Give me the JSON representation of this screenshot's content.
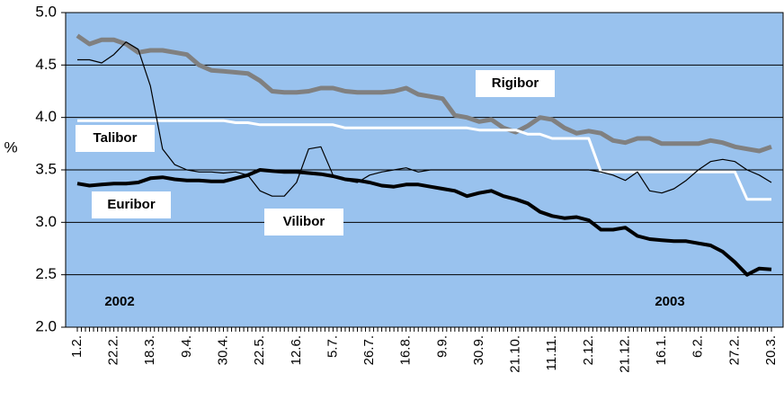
{
  "chart_data": {
    "type": "line",
    "y_label": "%",
    "categories": [
      "1.2.",
      null,
      null,
      "22.2.",
      null,
      null,
      "18.3.",
      null,
      null,
      "9.4.",
      null,
      null,
      "30.4.",
      null,
      null,
      "22.5.",
      null,
      null,
      "12.6.",
      null,
      null,
      "5.7.",
      null,
      null,
      "26.7.",
      null,
      null,
      "16.8.",
      null,
      null,
      "9.9.",
      null,
      null,
      "30.9.",
      null,
      null,
      "21.10.",
      null,
      null,
      "11.11.",
      null,
      null,
      "2.12.",
      null,
      null,
      "21.12.",
      null,
      null,
      "16.1.",
      null,
      null,
      "6.2.",
      null,
      null,
      "27.2.",
      null,
      null,
      "20.3."
    ],
    "series": [
      {
        "name": "Rigibor",
        "color": "#808080",
        "width": 5,
        "values": [
          4.78,
          4.7,
          4.74,
          4.74,
          4.7,
          4.62,
          4.64,
          4.64,
          4.62,
          4.6,
          4.5,
          4.45,
          4.44,
          4.43,
          4.42,
          4.35,
          4.25,
          4.24,
          4.24,
          4.25,
          4.28,
          4.28,
          4.25,
          4.24,
          4.24,
          4.24,
          4.25,
          4.28,
          4.22,
          4.2,
          4.18,
          4.02,
          4.0,
          3.96,
          3.98,
          3.9,
          3.86,
          3.92,
          4.0,
          3.98,
          3.9,
          3.85,
          3.87,
          3.85,
          3.78,
          3.76,
          3.8,
          3.8,
          3.75,
          3.75,
          3.75,
          3.75,
          3.78,
          3.76,
          3.72,
          3.7,
          3.68,
          3.72
        ]
      },
      {
        "name": "Talibor",
        "color": "#ffffff",
        "width": 3,
        "values": [
          3.97,
          3.97,
          3.97,
          3.97,
          3.97,
          3.97,
          3.97,
          3.97,
          3.97,
          3.97,
          3.97,
          3.97,
          3.97,
          3.95,
          3.95,
          3.93,
          3.93,
          3.93,
          3.93,
          3.93,
          3.93,
          3.93,
          3.9,
          3.9,
          3.9,
          3.9,
          3.9,
          3.9,
          3.9,
          3.9,
          3.9,
          3.9,
          3.9,
          3.88,
          3.88,
          3.88,
          3.88,
          3.84,
          3.84,
          3.8,
          3.8,
          3.8,
          3.8,
          3.48,
          3.48,
          3.48,
          3.48,
          3.48,
          3.48,
          3.48,
          3.48,
          3.48,
          3.48,
          3.48,
          3.48,
          3.22,
          3.22,
          3.22
        ]
      },
      {
        "name": "Euribor",
        "color": "#000000",
        "width": 4,
        "values": [
          3.37,
          3.35,
          3.36,
          3.37,
          3.37,
          3.38,
          3.42,
          3.43,
          3.41,
          3.4,
          3.4,
          3.39,
          3.39,
          3.42,
          3.45,
          3.5,
          3.49,
          3.48,
          3.48,
          3.47,
          3.46,
          3.44,
          3.41,
          3.4,
          3.38,
          3.35,
          3.34,
          3.36,
          3.36,
          3.34,
          3.32,
          3.3,
          3.25,
          3.28,
          3.3,
          3.25,
          3.22,
          3.18,
          3.1,
          3.06,
          3.04,
          3.05,
          3.02,
          2.93,
          2.93,
          2.95,
          2.87,
          2.84,
          2.83,
          2.82,
          2.82,
          2.8,
          2.78,
          2.72,
          2.62,
          2.5,
          2.56,
          2.55
        ]
      },
      {
        "name": "Vilibor",
        "color": "#000000",
        "width": 1.2,
        "values": [
          4.55,
          4.55,
          4.52,
          4.6,
          4.72,
          4.65,
          4.3,
          3.7,
          3.55,
          3.5,
          3.48,
          3.48,
          3.47,
          3.48,
          3.45,
          3.3,
          3.25,
          3.25,
          3.38,
          3.7,
          3.72,
          3.45,
          3.4,
          3.38,
          3.45,
          3.48,
          3.5,
          3.52,
          3.48,
          3.5,
          3.5,
          3.5,
          3.5,
          3.5,
          3.5,
          3.5,
          3.5,
          3.5,
          3.5,
          3.5,
          3.5,
          3.5,
          3.5,
          3.48,
          3.45,
          3.4,
          3.48,
          3.3,
          3.28,
          3.32,
          3.4,
          3.5,
          3.58,
          3.6,
          3.58,
          3.5,
          3.45,
          3.38
        ]
      }
    ],
    "annotations": [
      "Rigibor",
      "Talibor",
      "Euribor",
      "Vilibor",
      "2002",
      "2003"
    ],
    "ylim": [
      2.0,
      5.0
    ],
    "yticks": [
      {
        "value": 2.0,
        "label": "2.0"
      },
      {
        "value": 2.5,
        "label": "2.5"
      },
      {
        "value": 3.0,
        "label": "3.0"
      },
      {
        "value": 3.5,
        "label": "3.5"
      },
      {
        "value": 4.0,
        "label": "4.0"
      },
      {
        "value": 4.5,
        "label": "4.5"
      },
      {
        "value": 5.0,
        "label": "5.0"
      }
    ],
    "grid": true,
    "background": "#99c2ee"
  }
}
